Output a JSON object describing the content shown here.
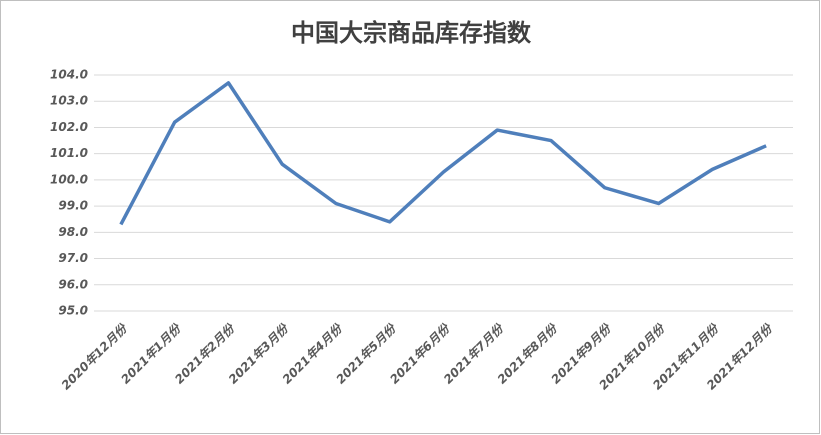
{
  "chart_data": {
    "type": "line",
    "title": "中国大宗商品库存指数",
    "categories": [
      "2020年12月份",
      "2021年1月份",
      "2021年2月份",
      "2021年3月份",
      "2021年4月份",
      "2021年5月份",
      "2021年6月份",
      "2021年7月份",
      "2021年8月份",
      "2021年9月份",
      "2021年10月份",
      "2021年11月份",
      "2021年12月份"
    ],
    "values": [
      98.3,
      102.2,
      103.7,
      100.6,
      99.1,
      98.4,
      100.3,
      101.9,
      101.5,
      99.7,
      99.1,
      100.4,
      101.3
    ],
    "color": "#4f7fbb",
    "ylim": [
      95,
      104
    ],
    "yticks": [
      {
        "value": 95,
        "label": "95.0"
      },
      {
        "value": 96,
        "label": "96.0"
      },
      {
        "value": 97,
        "label": "97.0"
      },
      {
        "value": 98,
        "label": "98.0"
      },
      {
        "value": 99,
        "label": "99.0"
      },
      {
        "value": 100,
        "label": "100.0"
      },
      {
        "value": 101,
        "label": "101.0"
      },
      {
        "value": 102,
        "label": "102.0"
      },
      {
        "value": 103,
        "label": "103.0"
      },
      {
        "value": 104,
        "label": "104.0"
      }
    ],
    "grid": true
  }
}
